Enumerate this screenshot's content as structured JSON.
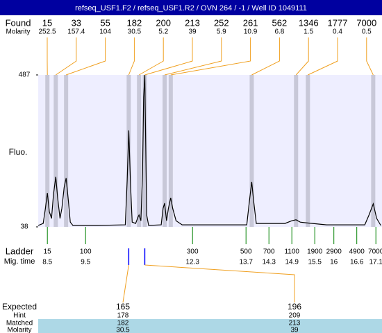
{
  "title": "refseq_USF1.F2 / refseq_USF1.R2 / OVN 264 / -1 / Well ID 1049111",
  "chart_data": {
    "type": "line",
    "ylabel": "Fluo.",
    "color": "#000000",
    "x": [
      8.26,
      8.39,
      8.45,
      8.5,
      8.55,
      8.61,
      8.66,
      8.72,
      8.77,
      8.83,
      8.88,
      8.94,
      8.99,
      9.05,
      9.1,
      9.17,
      9.81,
      10.54,
      10.59,
      10.63,
      10.68,
      10.72,
      10.81,
      10.88,
      10.9,
      10.95,
      10.99,
      11.02,
      11.05,
      11.06,
      11.1,
      11.15,
      11.48,
      11.53,
      11.57,
      11.62,
      11.67,
      11.73,
      11.78,
      11.87,
      12.03,
      13.72,
      13.79,
      13.85,
      13.9,
      13.97,
      14.72,
      14.9,
      15.01,
      15.12,
      15.26,
      15.81,
      16.81,
      16.92,
      17.03,
      17.12,
      17.23
    ],
    "values": [
      42,
      48,
      93,
      138,
      83,
      63,
      134,
      186,
      124,
      63,
      93,
      155,
      182,
      114,
      52,
      42,
      42,
      44,
      175,
      323,
      155,
      52,
      48,
      69,
      73,
      56,
      196,
      421,
      487,
      401,
      73,
      42,
      44,
      93,
      108,
      56,
      93,
      124,
      93,
      56,
      44,
      44,
      114,
      171,
      114,
      48,
      48,
      56,
      59,
      52,
      50,
      44,
      44,
      73,
      106,
      63,
      42
    ],
    "xlim": [
      8.26,
      17.26
    ],
    "ylim": [
      38,
      487
    ],
    "yticks": [
      38,
      487
    ]
  },
  "found": {
    "label": "Found",
    "sublabel": "Molarity",
    "sizes": [
      15,
      33,
      55,
      182,
      200,
      213,
      252,
      261,
      562,
      1346,
      1777,
      7000
    ],
    "molarity": [
      252.5,
      157.4,
      104,
      30.5,
      5.2,
      39,
      5.9,
      10.9,
      6.8,
      1.5,
      0.4,
      0.5
    ],
    "times": [
      8.5,
      8.72,
      8.99,
      10.63,
      10.9,
      11.05,
      11.57,
      11.73,
      13.85,
      15.01,
      15.32,
      17.03
    ]
  },
  "ladder": {
    "label": "Ladder",
    "sublabel": "Mig. time",
    "sizes": [
      15,
      100,
      300,
      500,
      700,
      1100,
      1900,
      2900,
      4900,
      7000
    ],
    "times": [
      8.5,
      9.5,
      12.3,
      13.7,
      14.3,
      14.9,
      15.5,
      16,
      16.6,
      17.1
    ]
  },
  "expected": {
    "label": "Expected",
    "hint_label": "Hint",
    "matched_label": "Matched",
    "molarity_label": "Molarity",
    "sizes": [
      165,
      196
    ],
    "hint": [
      178,
      209
    ],
    "matched": [
      182,
      213
    ],
    "molarity": [
      30.5,
      39
    ]
  }
}
